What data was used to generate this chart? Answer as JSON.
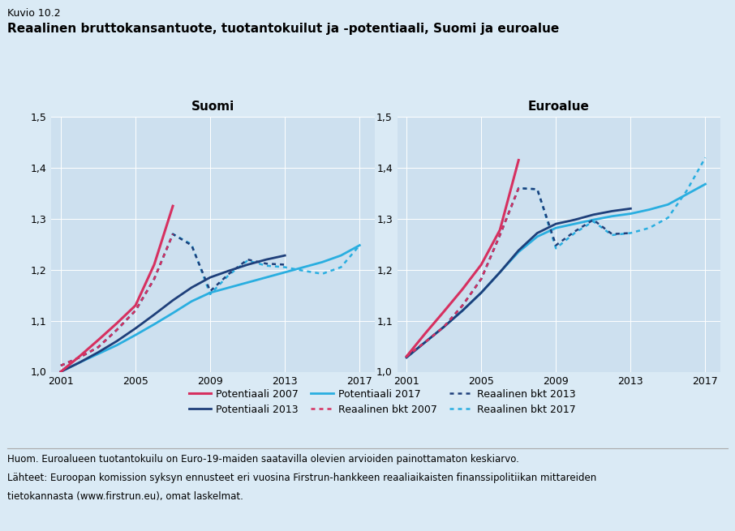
{
  "title_small": "Kuvio 10.2",
  "title_main": "Reaalinen bruttokansantuote, tuotantokuilut ja -potentiaali, Suomi ja euroalue",
  "subtitle_left": "Suomi",
  "subtitle_right": "Euroalue",
  "footnote1": "Huom. Euroalueen tuotantokuilu on Euro-19-maiden saatavilla olevien arvioiden painottamaton keskiarvo.",
  "footnote2": "Lähteet: Euroopan komission syksyn ennusteet eri vuosina Firstrun-hankkeen reaaliaikaisten finanssipolitiikan mittareiden",
  "footnote3": "tietokannasta (www.firstrun.eu), omat laskelmat.",
  "fig_bg_color": "#daeaf5",
  "plot_bg_color": "#cde0ef",
  "ylim": [
    1.0,
    1.5
  ],
  "yticks": [
    1.0,
    1.1,
    1.2,
    1.3,
    1.4,
    1.5
  ],
  "xticks": [
    2001,
    2005,
    2009,
    2013,
    2017
  ],
  "xlim": [
    2000.5,
    2017.8
  ],
  "colors": {
    "pot2007": "#d63060",
    "pot2013": "#1e3f7a",
    "pot2017": "#29aee0",
    "bkt2007": "#d63060",
    "bkt2013": "#1e3f7a",
    "bkt2017": "#29aee0"
  },
  "legend_labels": [
    "Potentiaali 2007",
    "Potentiaali 2013",
    "Potentiaali 2017",
    "Reaalinen bkt 2007",
    "Reaalinen bkt 2013",
    "Reaalinen bkt 2017"
  ],
  "suomi": {
    "pot2007_x": [
      2001,
      2002,
      2003,
      2004,
      2005,
      2006,
      2007
    ],
    "pot2007_y": [
      1.0,
      1.03,
      1.062,
      1.095,
      1.13,
      1.21,
      1.325
    ],
    "pot2013_x": [
      2001,
      2002,
      2003,
      2004,
      2005,
      2006,
      2007,
      2008,
      2009,
      2010,
      2011,
      2012,
      2013
    ],
    "pot2013_y": [
      1.0,
      1.018,
      1.038,
      1.06,
      1.085,
      1.112,
      1.14,
      1.165,
      1.185,
      1.198,
      1.21,
      1.22,
      1.228
    ],
    "pot2017_x": [
      2001,
      2002,
      2003,
      2004,
      2005,
      2006,
      2007,
      2008,
      2009,
      2010,
      2011,
      2012,
      2013,
      2014,
      2015,
      2016,
      2017
    ],
    "pot2017_y": [
      1.0,
      1.018,
      1.035,
      1.052,
      1.072,
      1.093,
      1.115,
      1.138,
      1.155,
      1.165,
      1.175,
      1.185,
      1.195,
      1.205,
      1.215,
      1.228,
      1.248
    ],
    "bkt2007_x": [
      2001,
      2002,
      2003,
      2004,
      2005,
      2006,
      2007
    ],
    "bkt2007_y": [
      1.012,
      1.028,
      1.048,
      1.082,
      1.12,
      1.182,
      1.27
    ],
    "bkt2013_x": [
      2001,
      2002,
      2003,
      2004,
      2005,
      2006,
      2007,
      2008,
      2009,
      2010,
      2011,
      2012,
      2013
    ],
    "bkt2013_y": [
      1.012,
      1.028,
      1.048,
      1.082,
      1.12,
      1.182,
      1.27,
      1.248,
      1.158,
      1.192,
      1.22,
      1.212,
      1.21
    ],
    "bkt2017_x": [
      2001,
      2002,
      2003,
      2004,
      2005,
      2006,
      2007,
      2008,
      2009,
      2010,
      2011,
      2012,
      2013,
      2014,
      2015,
      2016,
      2017
    ],
    "bkt2017_y": [
      1.012,
      1.028,
      1.048,
      1.082,
      1.12,
      1.182,
      1.27,
      1.25,
      1.152,
      1.19,
      1.218,
      1.208,
      1.205,
      1.198,
      1.192,
      1.205,
      1.248
    ]
  },
  "euroalue": {
    "pot2007_x": [
      2001,
      2002,
      2003,
      2004,
      2005,
      2006,
      2007
    ],
    "pot2007_y": [
      1.03,
      1.075,
      1.118,
      1.162,
      1.21,
      1.278,
      1.415
    ],
    "pot2013_x": [
      2001,
      2002,
      2003,
      2004,
      2005,
      2006,
      2007,
      2008,
      2009,
      2010,
      2011,
      2012,
      2013
    ],
    "pot2013_y": [
      1.028,
      1.058,
      1.088,
      1.12,
      1.155,
      1.195,
      1.238,
      1.272,
      1.29,
      1.298,
      1.308,
      1.315,
      1.32
    ],
    "pot2017_x": [
      2001,
      2002,
      2003,
      2004,
      2005,
      2006,
      2007,
      2008,
      2009,
      2010,
      2011,
      2012,
      2013,
      2014,
      2015,
      2016,
      2017
    ],
    "pot2017_y": [
      1.028,
      1.058,
      1.088,
      1.12,
      1.155,
      1.195,
      1.235,
      1.265,
      1.282,
      1.29,
      1.298,
      1.305,
      1.31,
      1.318,
      1.328,
      1.348,
      1.368
    ],
    "bkt2007_x": [
      2001,
      2002,
      2003,
      2004,
      2005,
      2006,
      2007
    ],
    "bkt2007_y": [
      1.03,
      1.058,
      1.088,
      1.13,
      1.182,
      1.268,
      1.36
    ],
    "bkt2013_x": [
      2001,
      2002,
      2003,
      2004,
      2005,
      2006,
      2007,
      2008,
      2009,
      2010,
      2011,
      2012,
      2013
    ],
    "bkt2013_y": [
      1.03,
      1.058,
      1.088,
      1.13,
      1.182,
      1.268,
      1.36,
      1.358,
      1.248,
      1.275,
      1.298,
      1.27,
      1.272
    ],
    "bkt2017_x": [
      2001,
      2002,
      2003,
      2004,
      2005,
      2006,
      2007,
      2008,
      2009,
      2010,
      2011,
      2012,
      2013,
      2014,
      2015,
      2016,
      2017
    ],
    "bkt2017_y": [
      1.03,
      1.058,
      1.088,
      1.13,
      1.182,
      1.268,
      1.36,
      1.358,
      1.242,
      1.272,
      1.295,
      1.268,
      1.272,
      1.282,
      1.302,
      1.355,
      1.42
    ]
  }
}
